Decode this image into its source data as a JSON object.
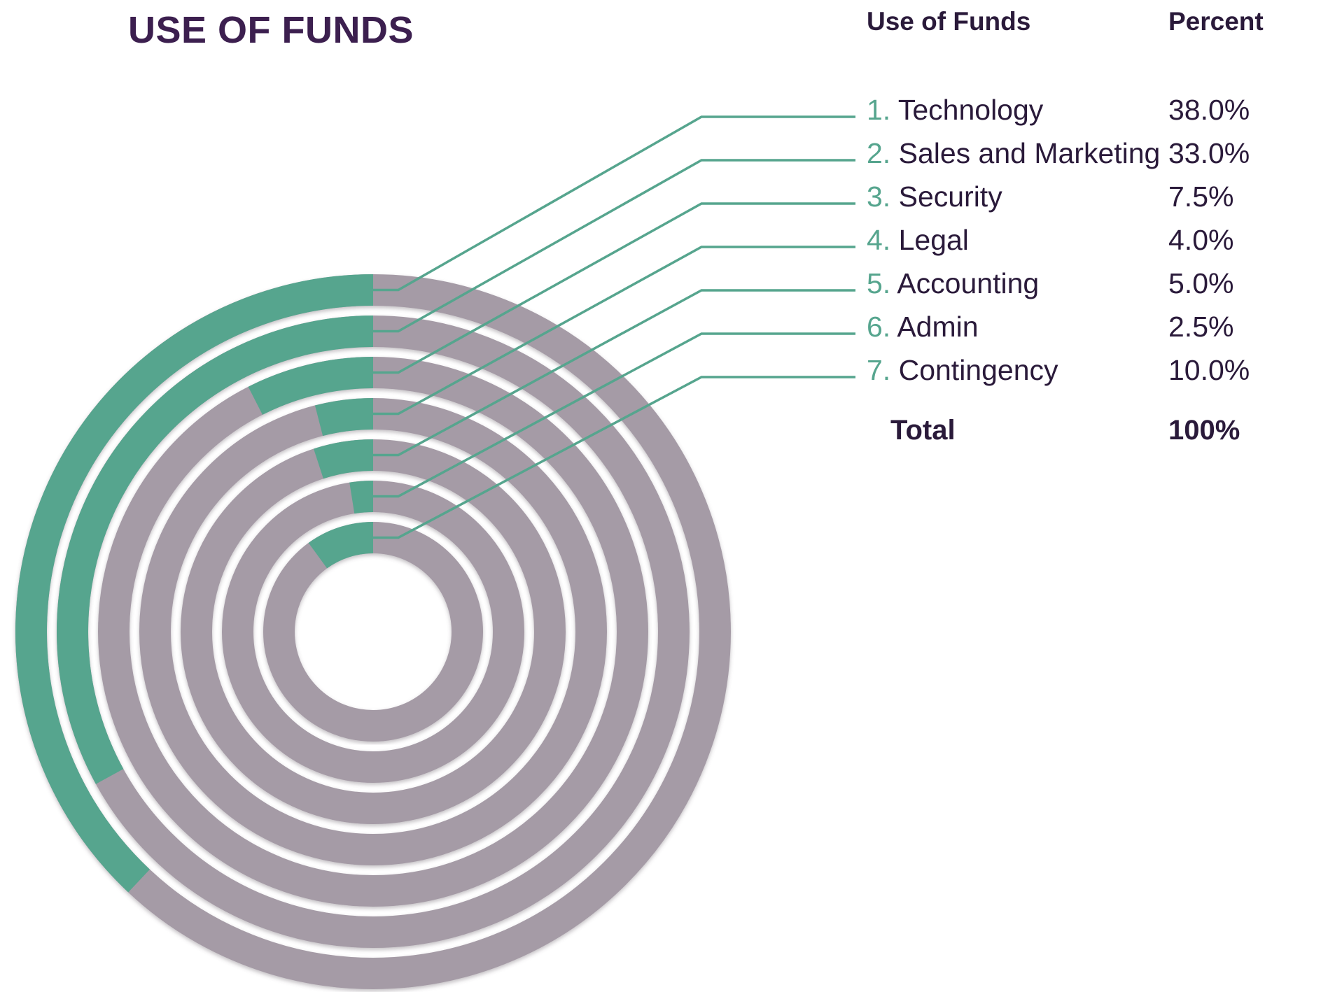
{
  "title": "USE OF FUNDS",
  "table": {
    "col_category": "Use of Funds",
    "col_percent": "Percent",
    "total_label": "Total",
    "total_value": "100%"
  },
  "colors": {
    "accent": "#56a58e",
    "ring": "#a59ba6",
    "title": "#3c1f4f",
    "text": "#2a1a3a"
  },
  "chart_data": {
    "type": "radial-bar",
    "title": "USE OF FUNDS",
    "max": 100,
    "series": [
      {
        "index": "1.",
        "name": "Technology",
        "value": 38.0,
        "label": "38.0%"
      },
      {
        "index": "2.",
        "name": "Sales and Marketing",
        "value": 33.0,
        "label": "33.0%"
      },
      {
        "index": "3.",
        "name": "Security",
        "value": 7.5,
        "label": "7.5%"
      },
      {
        "index": "4.",
        "name": "Legal",
        "value": 4.0,
        "label": "4.0%"
      },
      {
        "index": "5.",
        "name": "Accounting",
        "value": 5.0,
        "label": "5.0%"
      },
      {
        "index": "6.",
        "name": "Admin",
        "value": 2.5,
        "label": "2.5%"
      },
      {
        "index": "7.",
        "name": "Contingency",
        "value": 10.0,
        "label": "10.0%"
      }
    ]
  }
}
